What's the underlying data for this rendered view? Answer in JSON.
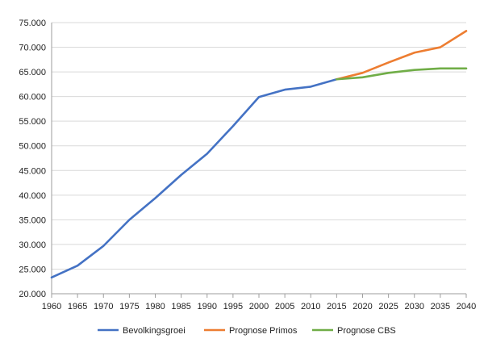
{
  "chart_data": {
    "type": "line",
    "x": [
      1960,
      1965,
      1970,
      1975,
      1980,
      1985,
      1990,
      1995,
      2000,
      2005,
      2010,
      2015,
      2020,
      2025,
      2030,
      2035,
      2040
    ],
    "x_tick_labels": [
      "1960",
      "1965",
      "1970",
      "1975",
      "1980",
      "1985",
      "1990",
      "1995",
      "2000",
      "2005",
      "2010",
      "2015",
      "2020",
      "2025",
      "2030",
      "2035",
      "2040"
    ],
    "ylim": [
      20000,
      75000
    ],
    "y_tick_values": [
      20000,
      25000,
      30000,
      35000,
      40000,
      45000,
      50000,
      55000,
      60000,
      65000,
      70000,
      75000
    ],
    "y_tick_labels": [
      "20.000",
      "25.000",
      "30.000",
      "35.000",
      "40.000",
      "45.000",
      "50.000",
      "55.000",
      "60.000",
      "65.000",
      "70.000",
      "75.000"
    ],
    "grid": true,
    "legend_position": "bottom",
    "series": [
      {
        "name": "Bevolkingsgroei",
        "color": "#4472c4",
        "x": [
          1960,
          1965,
          1970,
          1975,
          1980,
          1985,
          1990,
          1995,
          2000,
          2005,
          2010,
          2015
        ],
        "values": [
          23300,
          25700,
          29700,
          35000,
          39400,
          44100,
          48400,
          54000,
          59900,
          61400,
          62000,
          63500
        ]
      },
      {
        "name": "Prognose Primos",
        "color": "#ed7d31",
        "x": [
          2015,
          2020,
          2025,
          2030,
          2035,
          2040
        ],
        "values": [
          63500,
          64800,
          66900,
          68900,
          70000,
          73300
        ]
      },
      {
        "name": "Prognose CBS",
        "color": "#70ad47",
        "x": [
          2015,
          2020,
          2025,
          2030,
          2035,
          2040
        ],
        "values": [
          63500,
          63900,
          64800,
          65400,
          65700,
          65700
        ]
      }
    ]
  }
}
